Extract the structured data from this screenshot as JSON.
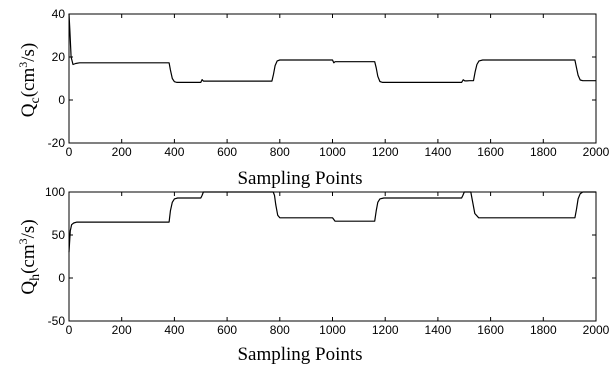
{
  "chart_data": [
    {
      "type": "line",
      "ylabel_base": "Q",
      "ylabel_sub": "c",
      "ylabel_mid": "(cm",
      "ylabel_sup": "3",
      "ylabel_end": "/s)",
      "xlabel": "Sampling Points",
      "xlim": [
        0,
        2000
      ],
      "ylim": [
        -20,
        40
      ],
      "xticks": [
        "0",
        "200",
        "400",
        "600",
        "800",
        "1000",
        "1200",
        "1400",
        "1600",
        "1800",
        "2000"
      ],
      "yticks": [
        "-20",
        "0",
        "20",
        "40"
      ],
      "series": [
        {
          "x": [
            0,
            3,
            8,
            15,
            25,
            40,
            380,
            385,
            392,
            400,
            410,
            500,
            505,
            510,
            770,
            776,
            782,
            790,
            800,
            1000,
            1005,
            1010,
            1160,
            1166,
            1172,
            1180,
            1190,
            1490,
            1496,
            1502,
            1510,
            1520,
            1535,
            1541,
            1548,
            1556,
            1570,
            1920,
            1926,
            1932,
            1940,
            1950,
            2000
          ],
          "y": [
            40,
            33,
            20,
            16.5,
            17,
            17.3,
            17.3,
            14,
            10,
            8.5,
            8.2,
            8.2,
            9.5,
            8.8,
            8.8,
            12,
            16,
            18.2,
            18.6,
            18.6,
            17.3,
            17.8,
            17.8,
            15,
            11,
            8.6,
            8.2,
            8.2,
            9.4,
            8.9,
            8.9,
            9.0,
            9.0,
            13,
            16.5,
            18.2,
            18.6,
            18.6,
            15,
            11.5,
            9.3,
            9.0,
            9.0
          ]
        }
      ]
    },
    {
      "type": "line",
      "ylabel_base": "Q",
      "ylabel_sub": "h",
      "ylabel_mid": "(cm",
      "ylabel_sup": "3",
      "ylabel_end": "/s)",
      "xlabel": "Sampling Points",
      "xlim": [
        0,
        2000
      ],
      "ylim": [
        -50,
        100
      ],
      "xticks": [
        "0",
        "200",
        "400",
        "600",
        "800",
        "1000",
        "1200",
        "1400",
        "1600",
        "1800",
        "2000"
      ],
      "yticks": [
        "-50",
        "0",
        "50",
        "100"
      ],
      "series": [
        {
          "x": [
            0,
            2,
            5,
            10,
            18,
            30,
            380,
            385,
            392,
            400,
            412,
            500,
            505,
            510,
            515,
            770,
            775,
            780,
            785,
            792,
            800,
            1000,
            1010,
            1160,
            1166,
            1172,
            1180,
            1195,
            1490,
            1495,
            1500,
            1505,
            1520,
            1525,
            1531,
            1540,
            1555,
            1920,
            1926,
            1932,
            1940,
            1950,
            2000
          ],
          "y": [
            30,
            40,
            55,
            62,
            64,
            65,
            65,
            78,
            88,
            92,
            93,
            93,
            96,
            100,
            100,
            100,
            100,
            96,
            85,
            73,
            70,
            70,
            66,
            66,
            78,
            88,
            92,
            93,
            93,
            96,
            100,
            100,
            100,
            100,
            90,
            75,
            70,
            70,
            80,
            92,
            98,
            100,
            100
          ]
        }
      ]
    }
  ]
}
